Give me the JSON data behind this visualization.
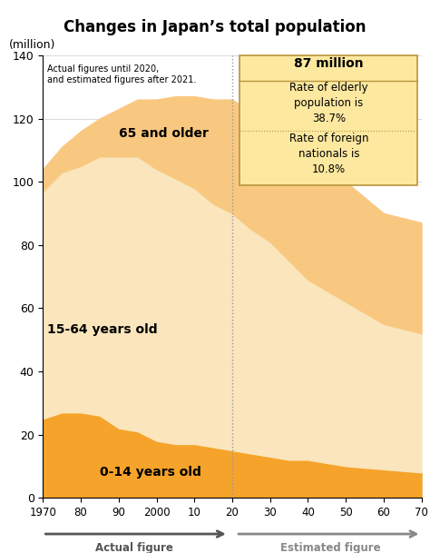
{
  "title": "Changes in Japan’s total population",
  "ylabel": "(million)",
  "ylim": [
    0,
    140
  ],
  "yticks": [
    0,
    20,
    40,
    60,
    80,
    100,
    120,
    140
  ],
  "years": [
    1970,
    1975,
    1980,
    1985,
    1990,
    1995,
    2000,
    2005,
    2010,
    2015,
    2020,
    2025,
    2030,
    2035,
    2040,
    2050,
    2060,
    2070
  ],
  "age0_14": [
    25,
    27,
    27,
    26,
    22,
    21,
    18,
    17,
    17,
    16,
    15,
    14,
    13,
    12,
    12,
    10,
    9,
    8
  ],
  "age15_64": [
    72,
    76,
    78,
    82,
    86,
    87,
    86,
    84,
    81,
    77,
    75,
    71,
    68,
    63,
    57,
    52,
    46,
    44
  ],
  "age65plus": [
    7,
    8,
    11,
    12,
    15,
    18,
    22,
    26,
    29,
    33,
    36,
    37,
    38,
    39,
    39,
    38,
    35,
    35
  ],
  "color_orange": "#f5a32a",
  "color_cream": "#fae5bc",
  "color_peach": "#f9c880",
  "color_box_bg": "#fde8a0",
  "color_box_border": "#b8963c",
  "note_text": "Actual figures until 2020,\nand estimated figures after 2021.",
  "label_0_14": "0-14 years old",
  "label_15_64": "15-64 years old",
  "label_65plus": "65 and older",
  "box_title": "87 million",
  "box_elderly": "Rate of elderly\npopulation is\n38.7%",
  "box_foreign": "Rate of foreign\nnationals is\n10.8%",
  "xlabel_actual": "Actual figure",
  "xlabel_estimated": "Estimated figure"
}
